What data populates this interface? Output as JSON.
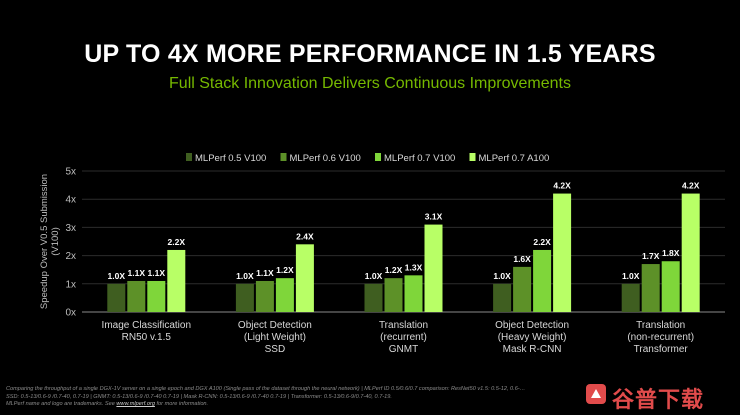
{
  "slide": {
    "title": "UP TO 4X MORE PERFORMANCE IN 1.5 YEARS",
    "subtitle": "Full Stack Innovation Delivers Continuous Improvements",
    "footnote_lines": [
      "Comparing the throughput of a single DGX-1V server on a single epoch and DGX A100 (Single pass of the dataset through the neural network) | MLPerf ID 0.5/0.6/0.7 comparison: ResNet50 v1.5: 0.5-12, 0.6-…",
      "SSD: 0.5-13/0.6-9 /0.7-40, 0.7-19 | GNMT: 0.5-13/0.6-9 /0.7-40 0.7-19 | Mask R-CNN: 0.5-13/0.6-9 /0.7-40 0.7-19 | Transformer: 0.5-13/0.6-9/0.7-40, 0.7-19."
    ],
    "footnote_last_prefix": "MLPerf name and logo are trademarks. See ",
    "footnote_link": "www.mlperf.org",
    "footnote_last_suffix": " for more information.",
    "watermark": "谷普下载"
  },
  "chart_data": {
    "type": "bar",
    "ylabel_lines": [
      "Speedup Over V0.5 Submission",
      "(V100)"
    ],
    "ylim": [
      0,
      5
    ],
    "yticks": [
      "0x",
      "1x",
      "2x",
      "3x",
      "4x",
      "5x"
    ],
    "grid": true,
    "legend_position": "top",
    "categories": [
      [
        "Image Classification",
        "RN50 v.1.5"
      ],
      [
        "Object Detection",
        "(Light Weight)",
        "SSD"
      ],
      [
        "Translation",
        "(recurrent)",
        "GNMT"
      ],
      [
        "Object Detection",
        "(Heavy Weight)",
        "Mask R-CNN"
      ],
      [
        "Translation",
        "(non-recurrent)",
        "Transformer"
      ]
    ],
    "series": [
      {
        "name": "MLPerf 0.5 V100",
        "color": "#3f5e20",
        "values": [
          1.0,
          1.0,
          1.0,
          1.0,
          1.0
        ],
        "labels": [
          "1.0X",
          "1.0X",
          "1.0X",
          "1.0X",
          "1.0X"
        ]
      },
      {
        "name": "MLPerf 0.6 V100",
        "color": "#5d9128",
        "values": [
          1.1,
          1.1,
          1.2,
          1.6,
          1.7
        ],
        "labels": [
          "1.1X",
          "1.1X",
          "1.2X",
          "1.6X",
          "1.7X"
        ]
      },
      {
        "name": "MLPerf 0.7 V100",
        "color": "#7fd63a",
        "values": [
          1.1,
          1.2,
          1.3,
          2.2,
          1.8
        ],
        "labels": [
          "1.1X",
          "1.2X",
          "1.3X",
          "2.2X",
          "1.8X"
        ]
      },
      {
        "name": "MLPerf 0.7 A100",
        "color": "#b8ff66",
        "values": [
          2.2,
          2.4,
          3.1,
          4.2,
          4.2
        ],
        "labels": [
          "2.2X",
          "2.4X",
          "3.1X",
          "4.2X",
          "4.2X"
        ]
      }
    ]
  }
}
